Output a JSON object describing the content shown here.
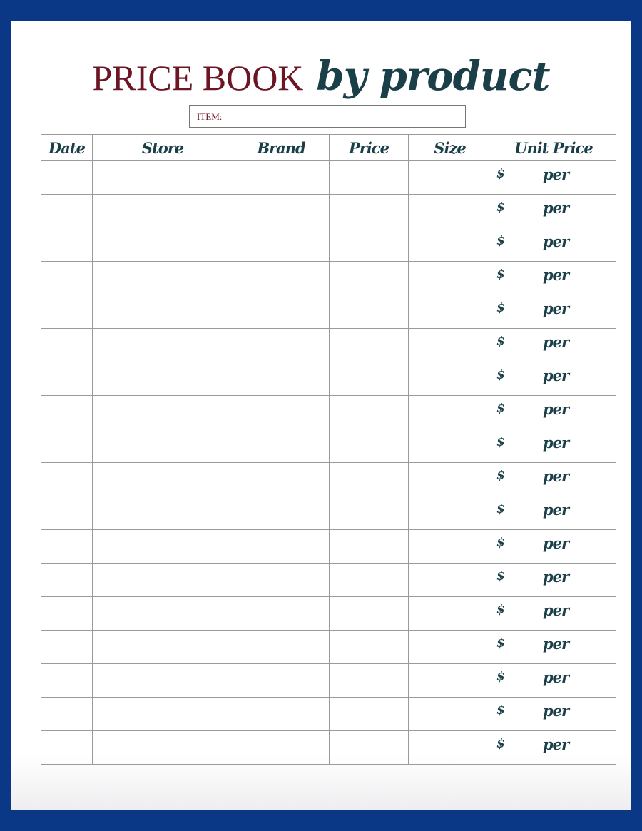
{
  "title": {
    "main": "PRICE BOOK",
    "script": "by product"
  },
  "item_field": {
    "label": "ITEM:",
    "value": ""
  },
  "table": {
    "columns": [
      "Date",
      "Store",
      "Brand",
      "Price",
      "Size",
      "Unit Price"
    ],
    "unit_price_prefix": "$",
    "unit_price_suffix": "per",
    "row_count": 18
  },
  "colors": {
    "border": "#0b3886",
    "title_main": "#6b1525",
    "title_script": "#1b3f48"
  }
}
